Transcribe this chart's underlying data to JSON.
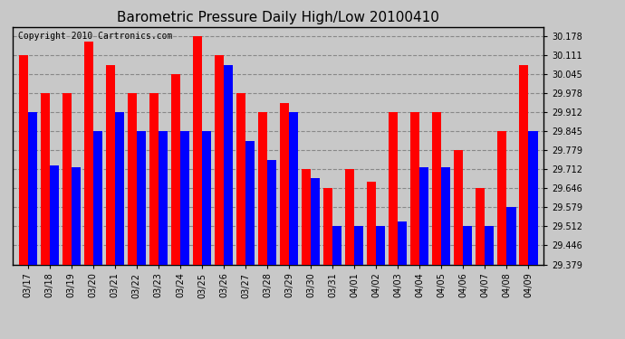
{
  "title": "Barometric Pressure Daily High/Low 20100410",
  "copyright": "Copyright 2010 Cartronics.com",
  "dates": [
    "03/17",
    "03/18",
    "03/19",
    "03/20",
    "03/21",
    "03/22",
    "03/23",
    "03/24",
    "03/25",
    "03/26",
    "03/27",
    "03/28",
    "03/29",
    "03/30",
    "03/31",
    "04/01",
    "04/02",
    "04/03",
    "04/04",
    "04/05",
    "04/06",
    "04/07",
    "04/08",
    "04/09"
  ],
  "highs": [
    30.111,
    29.978,
    29.978,
    30.16,
    30.078,
    29.978,
    29.978,
    30.045,
    30.178,
    30.111,
    29.978,
    29.912,
    29.945,
    29.712,
    29.645,
    29.712,
    29.668,
    29.912,
    29.912,
    29.912,
    29.779,
    29.645,
    29.845,
    30.078
  ],
  "lows": [
    29.912,
    29.725,
    29.72,
    29.845,
    29.912,
    29.845,
    29.845,
    29.845,
    29.845,
    30.078,
    29.812,
    29.745,
    29.912,
    29.68,
    29.512,
    29.512,
    29.512,
    29.53,
    29.72,
    29.72,
    29.512,
    29.512,
    29.58,
    29.845
  ],
  "high_color": "#FF0000",
  "low_color": "#0000FF",
  "bg_color": "#C8C8C8",
  "plot_bg_color": "#C8C8C8",
  "grid_color": "#888888",
  "title_fontsize": 11,
  "copyright_fontsize": 7,
  "yticks": [
    29.379,
    29.446,
    29.512,
    29.579,
    29.646,
    29.712,
    29.779,
    29.845,
    29.912,
    29.978,
    30.045,
    30.111,
    30.178
  ],
  "ymin": 29.379,
  "ymax": 30.21,
  "bar_bottom": 29.379
}
